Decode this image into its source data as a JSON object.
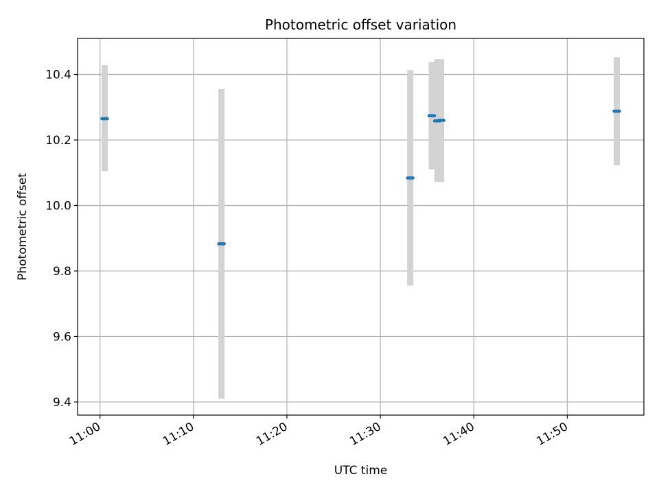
{
  "chart_data": {
    "type": "scatter",
    "title": "Photometric offset variation",
    "xlabel": "UTC time",
    "ylabel": "Photometric offset",
    "x_tick_labels": [
      "11:00",
      "11:10",
      "11:20",
      "11:30",
      "11:40",
      "11:50"
    ],
    "x_tick_minutes": [
      0,
      10,
      20,
      30,
      40,
      50
    ],
    "y_tick_labels": [
      "9.4",
      "9.6",
      "9.8",
      "10.0",
      "10.2",
      "10.4"
    ],
    "y_ticks": [
      9.4,
      9.6,
      9.8,
      10.0,
      10.2,
      10.4
    ],
    "xlim": [
      "10:57.6",
      "11:58.2"
    ],
    "ylim": [
      9.36,
      10.51
    ],
    "grid": true,
    "points": [
      {
        "time": "11:00.5",
        "y": 10.265,
        "ylow": 10.105,
        "yhigh": 10.428
      },
      {
        "time": "11:13.0",
        "y": 9.883,
        "ylow": 9.41,
        "yhigh": 10.355
      },
      {
        "time": "11:33.2",
        "y": 10.084,
        "ylow": 9.755,
        "yhigh": 10.413
      },
      {
        "time": "11:35.5",
        "y": 10.274,
        "ylow": 10.11,
        "yhigh": 10.438
      },
      {
        "time": "11:36.1",
        "y": 10.258,
        "ylow": 10.072,
        "yhigh": 10.447
      },
      {
        "time": "11:36.5",
        "y": 10.26,
        "ylow": 10.072,
        "yhigh": 10.447
      },
      {
        "time": "11:55.3",
        "y": 10.288,
        "ylow": 10.123,
        "yhigh": 10.453
      }
    ],
    "colors": {
      "point": "#1f77b4",
      "errorbar": "#d3d3d3",
      "grid": "#b0b0b0",
      "axes": "#000000"
    }
  }
}
